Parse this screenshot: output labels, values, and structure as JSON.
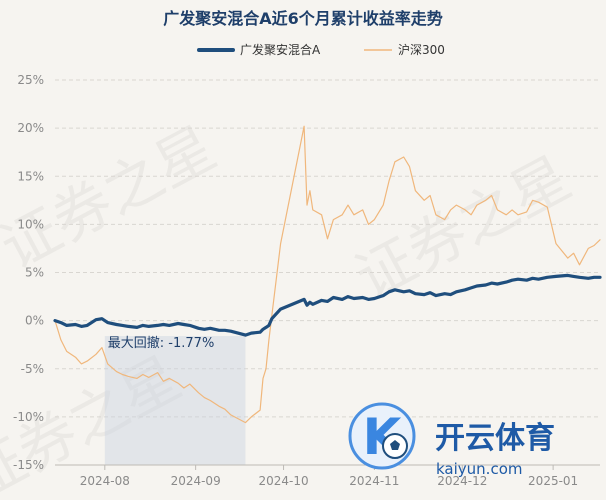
{
  "chart_data": {
    "type": "line",
    "title": "广发聚安混合A近6个月累计收益率走势",
    "xlabel": "",
    "ylabel": "",
    "ylim": [
      -15,
      25
    ],
    "y_ticks": [
      "25%",
      "20%",
      "15%",
      "10%",
      "5%",
      "0%",
      "-5%",
      "-10%",
      "-15%"
    ],
    "x_ticks": [
      {
        "label": "2024-08",
        "date": "2024-08-01"
      },
      {
        "label": "2024-09",
        "date": "2024-09-01"
      },
      {
        "label": "2024-10",
        "date": "2024-10-01"
      },
      {
        "label": "2024-11",
        "date": "2024-11-01"
      },
      {
        "label": "2024-12",
        "date": "2024-12-01"
      },
      {
        "label": "2025-01",
        "date": "2025-01-01"
      }
    ],
    "x_range": [
      "2024-07-15",
      "2025-01-17"
    ],
    "grid": "horizontal dashed",
    "legend_position": "top",
    "series": [
      {
        "name": "广发聚安混合A",
        "color": "#1f4e7d",
        "points": [
          [
            "2024-07-15",
            0.0
          ],
          [
            "2024-07-17",
            -0.2
          ],
          [
            "2024-07-19",
            -0.5
          ],
          [
            "2024-07-22",
            -0.4
          ],
          [
            "2024-07-24",
            -0.6
          ],
          [
            "2024-07-26",
            -0.5
          ],
          [
            "2024-07-29",
            0.1
          ],
          [
            "2024-07-31",
            0.2
          ],
          [
            "2024-08-02",
            -0.2
          ],
          [
            "2024-08-05",
            -0.4
          ],
          [
            "2024-08-07",
            -0.5
          ],
          [
            "2024-08-09",
            -0.6
          ],
          [
            "2024-08-12",
            -0.7
          ],
          [
            "2024-08-14",
            -0.5
          ],
          [
            "2024-08-16",
            -0.6
          ],
          [
            "2024-08-19",
            -0.5
          ],
          [
            "2024-08-21",
            -0.4
          ],
          [
            "2024-08-23",
            -0.5
          ],
          [
            "2024-08-26",
            -0.3
          ],
          [
            "2024-08-28",
            -0.4
          ],
          [
            "2024-08-30",
            -0.5
          ],
          [
            "2024-09-02",
            -0.8
          ],
          [
            "2024-09-04",
            -0.9
          ],
          [
            "2024-09-06",
            -0.8
          ],
          [
            "2024-09-09",
            -1.0
          ],
          [
            "2024-09-11",
            -1.0
          ],
          [
            "2024-09-13",
            -1.1
          ],
          [
            "2024-09-18",
            -1.5
          ],
          [
            "2024-09-20",
            -1.3
          ],
          [
            "2024-09-23",
            -1.2
          ],
          [
            "2024-09-24",
            -0.9
          ],
          [
            "2024-09-25",
            -0.7
          ],
          [
            "2024-09-26",
            -0.5
          ],
          [
            "2024-09-27",
            0.2
          ],
          [
            "2024-09-30",
            1.2
          ],
          [
            "2024-10-08",
            2.2
          ],
          [
            "2024-10-09",
            1.6
          ],
          [
            "2024-10-10",
            1.9
          ],
          [
            "2024-10-11",
            1.7
          ],
          [
            "2024-10-14",
            2.1
          ],
          [
            "2024-10-16",
            2.0
          ],
          [
            "2024-10-18",
            2.4
          ],
          [
            "2024-10-21",
            2.2
          ],
          [
            "2024-10-23",
            2.5
          ],
          [
            "2024-10-25",
            2.3
          ],
          [
            "2024-10-28",
            2.4
          ],
          [
            "2024-10-30",
            2.2
          ],
          [
            "2024-11-01",
            2.3
          ],
          [
            "2024-11-04",
            2.6
          ],
          [
            "2024-11-06",
            3.0
          ],
          [
            "2024-11-08",
            3.2
          ],
          [
            "2024-11-11",
            3.0
          ],
          [
            "2024-11-13",
            3.1
          ],
          [
            "2024-11-15",
            2.8
          ],
          [
            "2024-11-18",
            2.7
          ],
          [
            "2024-11-20",
            2.9
          ],
          [
            "2024-11-22",
            2.6
          ],
          [
            "2024-11-25",
            2.8
          ],
          [
            "2024-11-27",
            2.7
          ],
          [
            "2024-11-29",
            3.0
          ],
          [
            "2024-12-02",
            3.2
          ],
          [
            "2024-12-04",
            3.4
          ],
          [
            "2024-12-06",
            3.6
          ],
          [
            "2024-12-09",
            3.7
          ],
          [
            "2024-12-11",
            3.9
          ],
          [
            "2024-12-13",
            3.8
          ],
          [
            "2024-12-16",
            4.0
          ],
          [
            "2024-12-18",
            4.2
          ],
          [
            "2024-12-20",
            4.3
          ],
          [
            "2024-12-23",
            4.2
          ],
          [
            "2024-12-25",
            4.4
          ],
          [
            "2024-12-27",
            4.3
          ],
          [
            "2024-12-30",
            4.5
          ],
          [
            "2025-01-02",
            4.6
          ],
          [
            "2025-01-06",
            4.7
          ],
          [
            "2025-01-08",
            4.6
          ],
          [
            "2025-01-10",
            4.5
          ],
          [
            "2025-01-13",
            4.4
          ],
          [
            "2025-01-15",
            4.5
          ],
          [
            "2025-01-17",
            4.5
          ]
        ]
      },
      {
        "name": "沪深300",
        "color": "#f0b77c",
        "points": [
          [
            "2024-07-15",
            0.0
          ],
          [
            "2024-07-17",
            -2.0
          ],
          [
            "2024-07-19",
            -3.2
          ],
          [
            "2024-07-22",
            -3.8
          ],
          [
            "2024-07-24",
            -4.5
          ],
          [
            "2024-07-26",
            -4.2
          ],
          [
            "2024-07-29",
            -3.5
          ],
          [
            "2024-07-31",
            -2.8
          ],
          [
            "2024-08-02",
            -4.5
          ],
          [
            "2024-08-05",
            -5.3
          ],
          [
            "2024-08-07",
            -5.6
          ],
          [
            "2024-08-09",
            -5.8
          ],
          [
            "2024-08-12",
            -6.0
          ],
          [
            "2024-08-14",
            -5.6
          ],
          [
            "2024-08-16",
            -5.9
          ],
          [
            "2024-08-19",
            -5.4
          ],
          [
            "2024-08-21",
            -6.3
          ],
          [
            "2024-08-23",
            -6.0
          ],
          [
            "2024-08-26",
            -6.5
          ],
          [
            "2024-08-28",
            -7.0
          ],
          [
            "2024-08-30",
            -6.6
          ],
          [
            "2024-09-02",
            -7.5
          ],
          [
            "2024-09-04",
            -8.0
          ],
          [
            "2024-09-06",
            -8.3
          ],
          [
            "2024-09-09",
            -8.9
          ],
          [
            "2024-09-11",
            -9.2
          ],
          [
            "2024-09-13",
            -9.8
          ],
          [
            "2024-09-18",
            -10.6
          ],
          [
            "2024-09-20",
            -10.0
          ],
          [
            "2024-09-23",
            -9.3
          ],
          [
            "2024-09-24",
            -6.0
          ],
          [
            "2024-09-25",
            -5.0
          ],
          [
            "2024-09-26",
            -2.0
          ],
          [
            "2024-09-27",
            0.5
          ],
          [
            "2024-09-30",
            8.0
          ],
          [
            "2024-10-08",
            20.2
          ],
          [
            "2024-10-09",
            12.0
          ],
          [
            "2024-10-10",
            13.5
          ],
          [
            "2024-10-11",
            11.5
          ],
          [
            "2024-10-14",
            11.0
          ],
          [
            "2024-10-16",
            8.5
          ],
          [
            "2024-10-18",
            10.5
          ],
          [
            "2024-10-21",
            11.0
          ],
          [
            "2024-10-23",
            12.0
          ],
          [
            "2024-10-25",
            11.0
          ],
          [
            "2024-10-28",
            11.5
          ],
          [
            "2024-10-30",
            10.0
          ],
          [
            "2024-11-01",
            10.5
          ],
          [
            "2024-11-04",
            12.0
          ],
          [
            "2024-11-06",
            14.5
          ],
          [
            "2024-11-08",
            16.5
          ],
          [
            "2024-11-11",
            17.0
          ],
          [
            "2024-11-13",
            16.0
          ],
          [
            "2024-11-15",
            13.5
          ],
          [
            "2024-11-18",
            12.5
          ],
          [
            "2024-11-20",
            13.0
          ],
          [
            "2024-11-22",
            11.0
          ],
          [
            "2024-11-25",
            10.5
          ],
          [
            "2024-11-27",
            11.5
          ],
          [
            "2024-11-29",
            12.0
          ],
          [
            "2024-12-02",
            11.5
          ],
          [
            "2024-12-04",
            11.0
          ],
          [
            "2024-12-06",
            12.0
          ],
          [
            "2024-12-09",
            12.5
          ],
          [
            "2024-12-11",
            13.0
          ],
          [
            "2024-12-13",
            11.5
          ],
          [
            "2024-12-16",
            11.0
          ],
          [
            "2024-12-18",
            11.5
          ],
          [
            "2024-12-20",
            11.0
          ],
          [
            "2024-12-23",
            11.3
          ],
          [
            "2024-12-25",
            12.5
          ],
          [
            "2024-12-27",
            12.3
          ],
          [
            "2024-12-30",
            11.8
          ],
          [
            "2025-01-02",
            8.0
          ],
          [
            "2025-01-06",
            6.5
          ],
          [
            "2025-01-08",
            7.0
          ],
          [
            "2025-01-10",
            5.8
          ],
          [
            "2025-01-13",
            7.5
          ],
          [
            "2025-01-15",
            7.8
          ],
          [
            "2025-01-17",
            8.4
          ]
        ]
      }
    ],
    "annotations": [
      {
        "type": "max_drawdown",
        "label": "最大回撤: -1.77%",
        "start": "2024-08-01",
        "end": "2024-09-18",
        "color": "#c9d3df"
      }
    ]
  },
  "watermark": {
    "text": "证券之星"
  },
  "logo": {
    "name": "开云体育",
    "domain": "kaiyun.com",
    "mark": "K"
  }
}
